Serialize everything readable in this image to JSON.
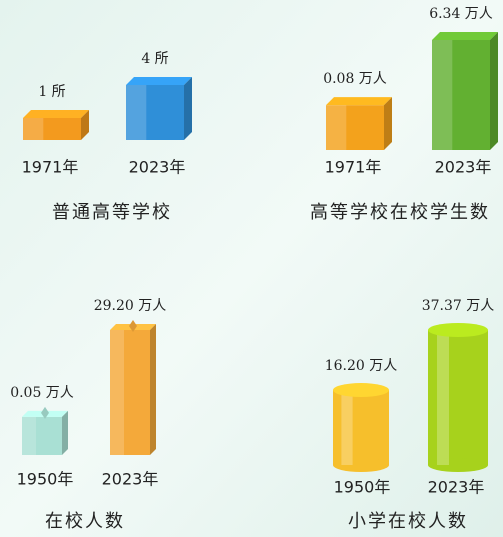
{
  "chart_data": [
    {
      "type": "bar",
      "title": "普通高等学校",
      "categories": [
        "1971年",
        "2023年"
      ],
      "values": [
        1,
        4
      ],
      "value_labels": [
        "1 所",
        "4 所"
      ],
      "colors": [
        "#f39a1e",
        "#2f8fd8"
      ]
    },
    {
      "type": "bar",
      "title": "高等学校在校学生数",
      "categories": [
        "1971年",
        "2023年"
      ],
      "values": [
        0.08,
        6.34
      ],
      "value_labels": [
        "0.08 万人",
        "6.34 万人"
      ],
      "colors": [
        "#f3a21c",
        "#62b031"
      ]
    },
    {
      "type": "bar",
      "title": "在校人数",
      "categories": [
        "1950年",
        "2023年"
      ],
      "values": [
        0.05,
        29.2
      ],
      "value_labels": [
        "0.05 万人",
        "29.20 万人"
      ],
      "colors": [
        "#a9e0d4",
        "#f4a93a"
      ]
    },
    {
      "type": "bar",
      "title": "小学在校人数",
      "categories": [
        "1950年",
        "2023年"
      ],
      "values": [
        16.2,
        37.37
      ],
      "value_labels": [
        "16.20 万人",
        "37.37 万人"
      ],
      "colors": [
        "#f6bf2c",
        "#a7d21c"
      ]
    }
  ]
}
